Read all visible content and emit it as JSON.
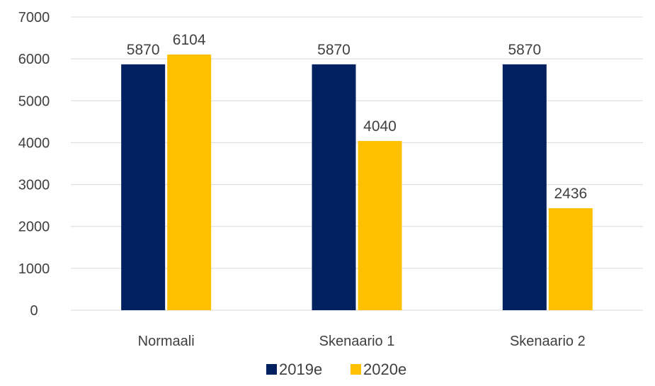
{
  "chart_data": {
    "type": "bar",
    "title": "",
    "xlabel": "",
    "ylabel": "",
    "categories": [
      "Normaali",
      "Skenaario 1",
      "Skenaario 2"
    ],
    "series": [
      {
        "name": "2019e",
        "color": "#002060",
        "values": [
          5870,
          5870,
          5870
        ]
      },
      {
        "name": "2020e",
        "color": "#FFC000",
        "values": [
          6104,
          4040,
          2436
        ]
      }
    ],
    "ylim": [
      0,
      7000
    ],
    "yticks": [
      0,
      1000,
      2000,
      3000,
      4000,
      5000,
      6000,
      7000
    ],
    "grid": true,
    "legend": "bottom",
    "data_labels": true
  }
}
